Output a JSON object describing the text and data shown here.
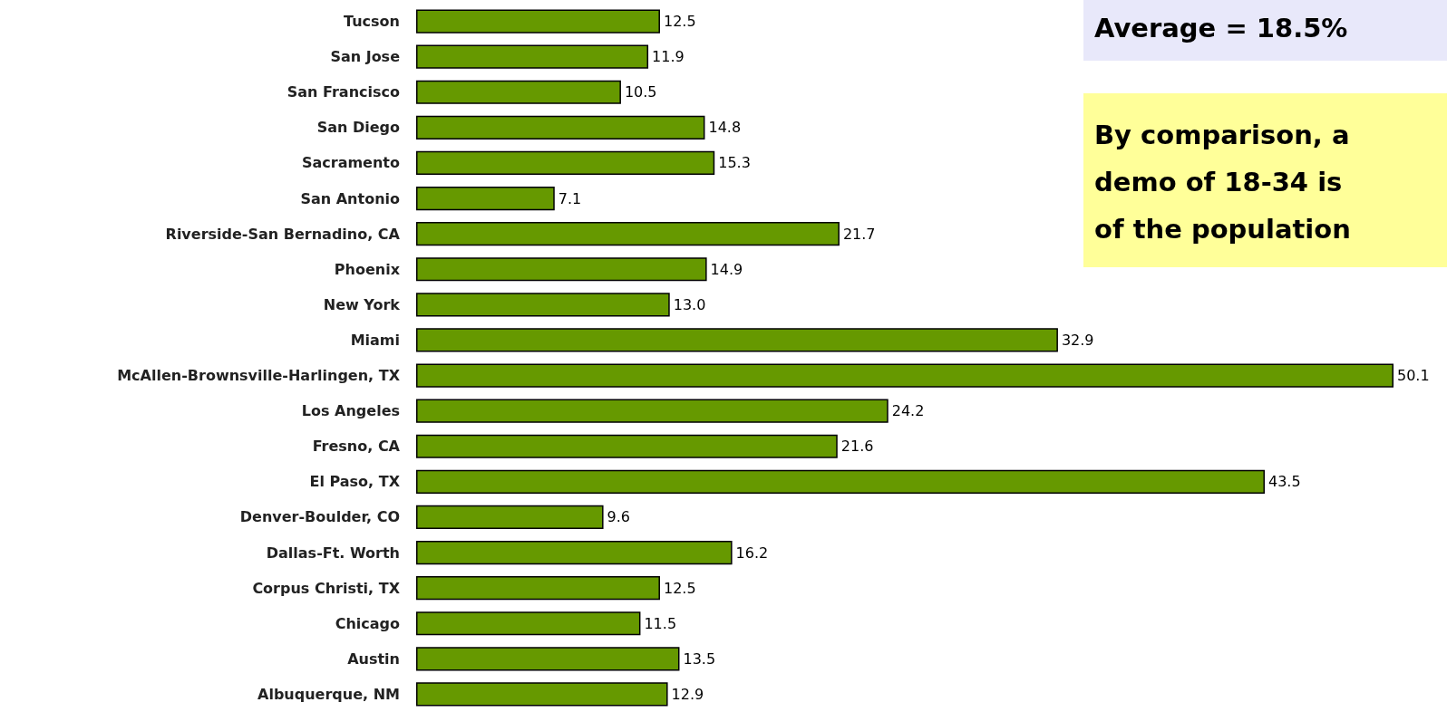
{
  "chart_data": {
    "type": "bar",
    "orientation": "horizontal",
    "categories": [
      "Tucson",
      "San Jose",
      "San Francisco",
      "San Diego",
      "Sacramento",
      "San Antonio",
      "Riverside-San Bernadino, CA",
      "Phoenix",
      "New York",
      "Miami",
      "McAllen-Brownsville-Harlingen, TX",
      "Los Angeles",
      "Fresno, CA",
      "El Paso, TX",
      "Denver-Boulder, CO",
      "Dallas-Ft. Worth",
      "Corpus Christi, TX",
      "Chicago",
      "Austin",
      "Albuquerque, NM"
    ],
    "values": [
      12.5,
      11.9,
      10.5,
      14.8,
      15.3,
      7.1,
      21.7,
      14.9,
      13.0,
      32.9,
      50.1,
      24.2,
      21.6,
      43.5,
      9.6,
      16.2,
      12.5,
      11.5,
      13.5,
      12.9
    ],
    "value_labels": [
      "12.5",
      "11.9",
      "10.5",
      "14.8",
      "15.3",
      "7.1",
      "21.7",
      "14.9",
      "13.0",
      "32.9",
      "50.1",
      "24.2",
      "21.6",
      "43.5",
      "9.6",
      "16.2",
      "12.5",
      "11.5",
      "13.5",
      "12.9"
    ],
    "color": "#669900",
    "annotations": [
      "Average = 18.5%",
      "By comparison, a\ndemo of 18-34 is\nof the population"
    ]
  }
}
